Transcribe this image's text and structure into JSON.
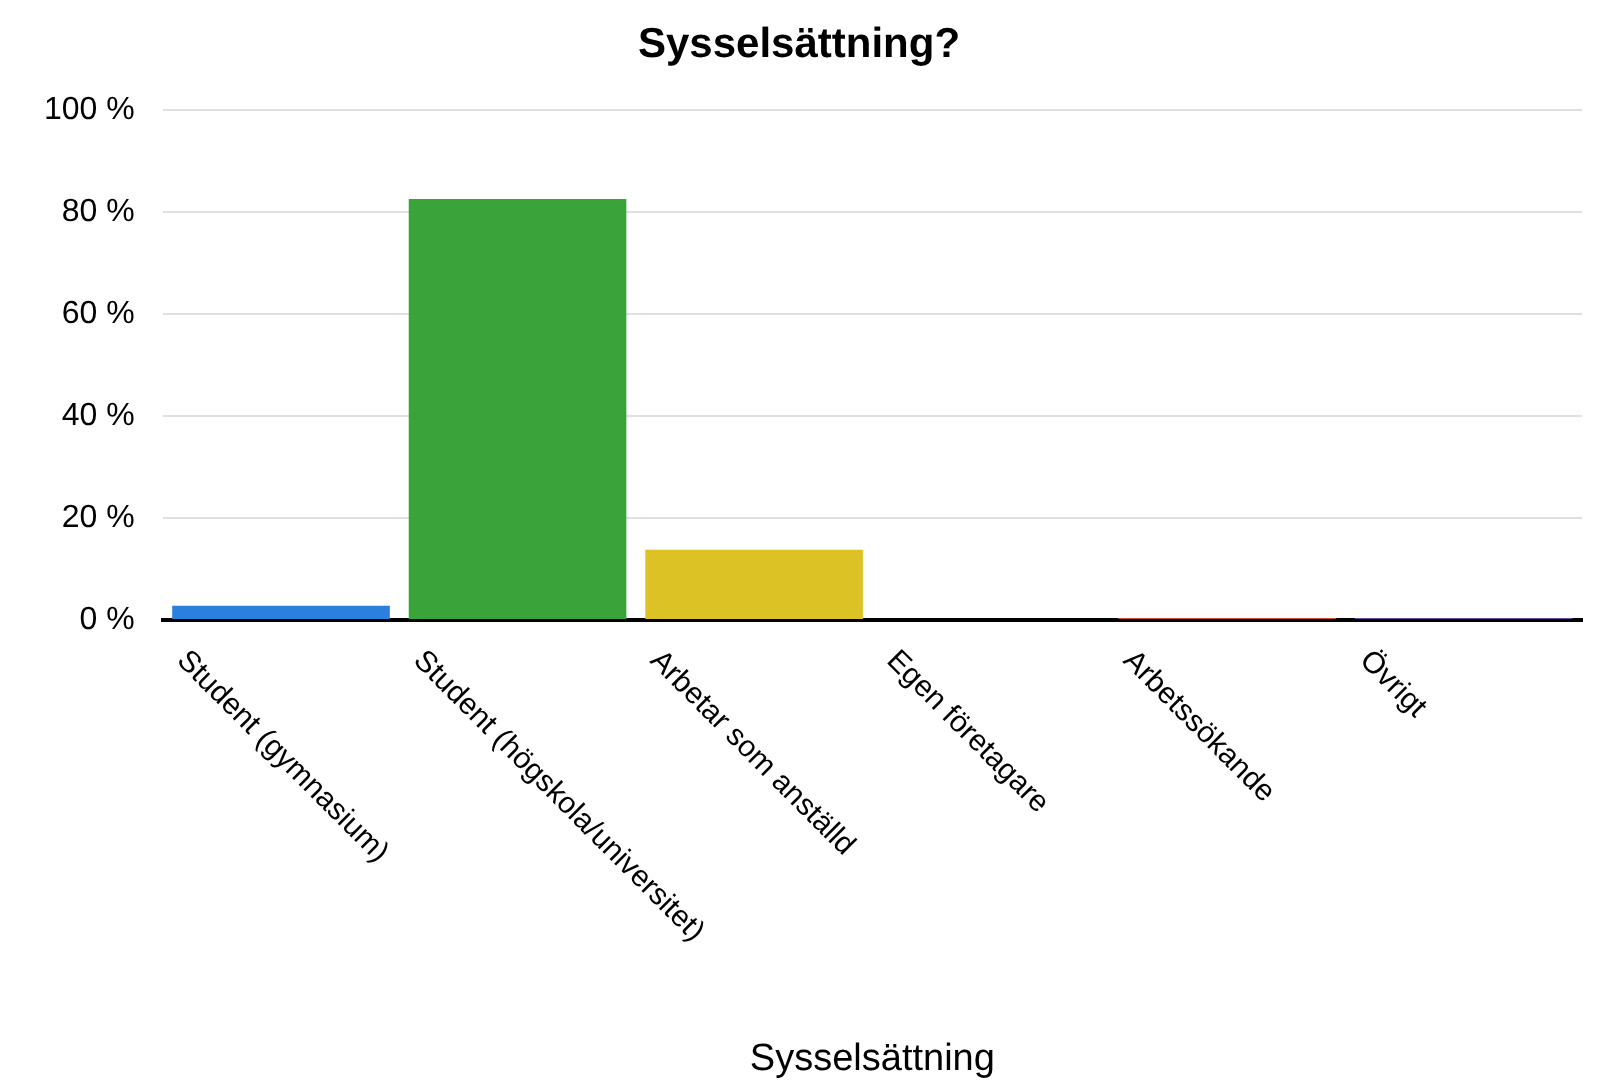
{
  "chart_data": {
    "type": "bar",
    "title": "Sysselsättning?",
    "xlabel": "Sysselsättning",
    "categories": [
      "Student (gymnasium)",
      "Student (högskola/universitet)",
      "Arbetar som anställd",
      "Egen företagare",
      "Arbetssökande",
      "Övrigt"
    ],
    "values": [
      2.8,
      82.6,
      13.8,
      0,
      0.4,
      0.4
    ],
    "colors": [
      "#2a80dc",
      "#3aa43a",
      "#dcc224",
      "#d04a2a",
      "#d04a2a",
      "#6a4aa8"
    ],
    "ylim": [
      0,
      100
    ],
    "yticks": [
      {
        "value": 0,
        "label": "0 %"
      },
      {
        "value": 20,
        "label": "20 %"
      },
      {
        "value": 40,
        "label": "40 %"
      },
      {
        "value": 60,
        "label": "60 %"
      },
      {
        "value": 80,
        "label": "80 %"
      },
      {
        "value": 100,
        "label": "100 %"
      }
    ],
    "grid": "y"
  }
}
